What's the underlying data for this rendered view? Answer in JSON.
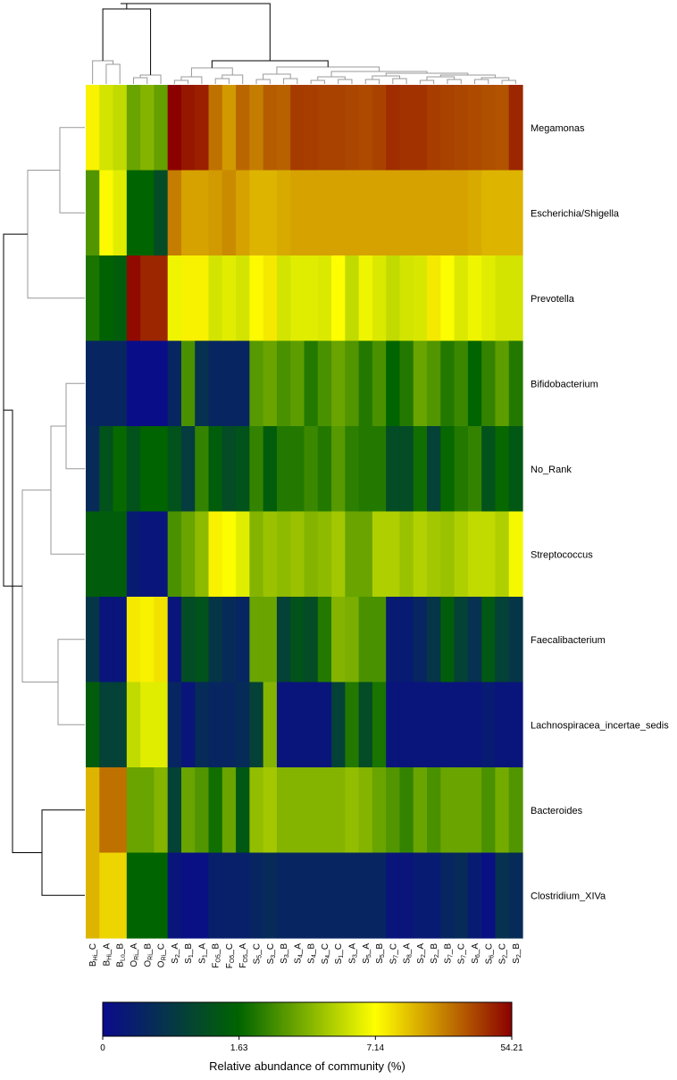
{
  "chart_data": {
    "type": "heatmap",
    "rows": [
      "Megamonas",
      "Escherichia/Shigella",
      "Prevotella",
      "Bifidobacterium",
      "No_Rank",
      "Streptococcus",
      "Faecalibacterium",
      "Lachnospiracea_incertae_sedis",
      "Bacteroides",
      "Clostridium_XIVa"
    ],
    "columns": [
      {
        "main": "B",
        "sub": "Hi",
        "suf": "C"
      },
      {
        "main": "B",
        "sub": "Hi",
        "suf": "A"
      },
      {
        "main": "B",
        "sub": "Lo",
        "suf": "B"
      },
      {
        "main": "O",
        "sub": "Ri",
        "suf": "A"
      },
      {
        "main": "O",
        "sub": "Ri",
        "suf": "B"
      },
      {
        "main": "O",
        "sub": "Ri",
        "suf": "C"
      },
      {
        "main": "S",
        "sub": "2",
        "suf": "A"
      },
      {
        "main": "S",
        "sub": "1",
        "suf": "B"
      },
      {
        "main": "S",
        "sub": "1",
        "suf": "A"
      },
      {
        "main": "F",
        "sub": "O5",
        "suf": "B"
      },
      {
        "main": "F",
        "sub": "O5",
        "suf": "C"
      },
      {
        "main": "F",
        "sub": "O5",
        "suf": "A"
      },
      {
        "main": "S",
        "sub": "5",
        "suf": "C"
      },
      {
        "main": "S",
        "sub": "3",
        "suf": "C"
      },
      {
        "main": "S",
        "sub": "3",
        "suf": "B"
      },
      {
        "main": "S",
        "sub": "4",
        "suf": "A"
      },
      {
        "main": "S",
        "sub": "4",
        "suf": "B"
      },
      {
        "main": "S",
        "sub": "4",
        "suf": "C"
      },
      {
        "main": "S",
        "sub": "1",
        "suf": "C"
      },
      {
        "main": "S",
        "sub": "3",
        "suf": "A"
      },
      {
        "main": "S",
        "sub": "5",
        "suf": "A"
      },
      {
        "main": "S",
        "sub": "5",
        "suf": "B"
      },
      {
        "main": "S",
        "sub": "7",
        "suf": "C"
      },
      {
        "main": "S",
        "sub": "8",
        "suf": "A"
      },
      {
        "main": "S",
        "sub": "2",
        "suf": "A"
      },
      {
        "main": "S",
        "sub": "2",
        "suf": "B"
      },
      {
        "main": "S",
        "sub": "7",
        "suf": "B"
      },
      {
        "main": "S",
        "sub": "7",
        "suf": "C"
      },
      {
        "main": "S",
        "sub": "6",
        "suf": "A"
      },
      {
        "main": "S",
        "sub": "6",
        "suf": "C"
      },
      {
        "main": "S",
        "sub": "2",
        "suf": "C"
      },
      {
        "main": "S",
        "sub": "2",
        "suf": "B"
      }
    ],
    "values": [
      [
        7.9,
        5.5,
        5.0,
        3.0,
        3.5,
        2.9,
        54.0,
        45.0,
        42.0,
        22.0,
        16.0,
        24.0,
        20.0,
        26.0,
        25.0,
        34.0,
        33.0,
        32.0,
        32.0,
        31.0,
        30.0,
        32.0,
        38.0,
        36.0,
        36.0,
        33.0,
        32.0,
        31.0,
        30.0,
        29.0,
        28.0,
        40.0
      ],
      [
        2.6,
        7.5,
        6.0,
        1.63,
        1.63,
        1.2,
        20.0,
        15.0,
        15.0,
        16.0,
        18.0,
        15.0,
        13.0,
        13.0,
        14.0,
        15.0,
        15.0,
        15.0,
        15.0,
        15.0,
        15.0,
        15.0,
        15.0,
        15.0,
        15.0,
        15.0,
        15.0,
        15.0,
        14.0,
        13.0,
        13.0,
        13.0
      ],
      [
        1.9,
        1.6,
        1.5,
        50.0,
        40.0,
        40.0,
        6.5,
        8.0,
        8.0,
        5.5,
        6.0,
        5.5,
        7.5,
        8.5,
        5.5,
        6.0,
        6.0,
        5.8,
        7.2,
        5.0,
        6.5,
        5.8,
        5.0,
        5.5,
        5.7,
        8.5,
        7.0,
        5.8,
        6.5,
        6.0,
        5.5,
        5.5
      ],
      [
        0.5,
        0.5,
        0.5,
        0.05,
        0.05,
        0.05,
        0.5,
        2.5,
        0.7,
        0.5,
        0.5,
        0.5,
        2.7,
        3.0,
        2.5,
        2.8,
        2.0,
        2.5,
        3.0,
        2.6,
        2.0,
        2.5,
        1.63,
        2.0,
        3.0,
        2.6,
        2.0,
        2.3,
        1.63,
        2.2,
        2.8,
        2.0
      ],
      [
        0.6,
        1.3,
        1.7,
        1.3,
        1.63,
        1.63,
        1.3,
        0.9,
        2.2,
        1.5,
        1.2,
        1.3,
        2.2,
        1.5,
        2.0,
        2.0,
        2.3,
        2.0,
        2.7,
        2.1,
        2.0,
        2.0,
        1.2,
        1.2,
        1.8,
        1.0,
        1.7,
        2.0,
        2.2,
        1.3,
        1.7,
        1.4
      ],
      [
        1.5,
        1.5,
        1.5,
        0.3,
        0.2,
        0.2,
        2.5,
        3.0,
        3.7,
        8.0,
        7.0,
        6.0,
        3.5,
        4.0,
        3.7,
        4.0,
        3.5,
        3.7,
        4.2,
        3.0,
        3.0,
        4.5,
        4.5,
        4.0,
        4.6,
        4.2,
        4.0,
        4.5,
        5.0,
        5.0,
        4.5,
        6.7
      ],
      [
        0.8,
        0.2,
        0.2,
        8.5,
        8.0,
        9.0,
        0.2,
        1.2,
        1.3,
        0.8,
        0.6,
        0.5,
        3.0,
        3.0,
        1.0,
        1.3,
        1.2,
        2.0,
        3.5,
        3.3,
        2.5,
        2.5,
        0.3,
        0.3,
        0.5,
        0.8,
        1.5,
        1.0,
        0.7,
        1.4,
        1.0,
        0.8
      ],
      [
        1.5,
        1.0,
        1.0,
        5.0,
        6.0,
        6.0,
        0.5,
        0.2,
        0.6,
        0.5,
        0.5,
        0.6,
        1.0,
        3.5,
        0.2,
        0.2,
        0.2,
        0.2,
        1.0,
        2.0,
        1.2,
        1.9,
        0.2,
        0.2,
        0.2,
        0.2,
        0.2,
        0.2,
        0.2,
        0.3,
        0.2,
        0.2
      ],
      [
        13.0,
        22.0,
        22.0,
        3.0,
        3.0,
        3.5,
        1.0,
        3.0,
        2.6,
        1.8,
        3.0,
        1.4,
        3.8,
        4.2,
        3.5,
        3.5,
        3.5,
        3.5,
        3.5,
        3.8,
        3.5,
        3.0,
        2.6,
        2.2,
        3.0,
        2.5,
        3.0,
        3.0,
        3.0,
        2.5,
        3.2,
        2.6
      ],
      [
        13.0,
        10.0,
        10.0,
        1.63,
        1.63,
        1.63,
        0.2,
        0.1,
        0.1,
        0.4,
        0.4,
        0.4,
        0.5,
        0.6,
        0.5,
        0.5,
        0.5,
        0.5,
        0.5,
        0.5,
        0.5,
        0.5,
        0.2,
        0.2,
        0.3,
        0.3,
        0.5,
        0.6,
        0.3,
        0.1,
        0.7,
        0.6
      ]
    ],
    "scale": {
      "stops": [
        0,
        1.63,
        7.14,
        54.21
      ],
      "ticks": [
        "0",
        "1.63",
        "7.14",
        "54.21"
      ],
      "colors": [
        "#0a0a8c",
        "#006400",
        "#ffff00",
        "#8b0000"
      ],
      "label": "Relative abundance of community (%)"
    },
    "dendrogram_color": "#000000",
    "dendrogram_minor_color": "#999999"
  }
}
